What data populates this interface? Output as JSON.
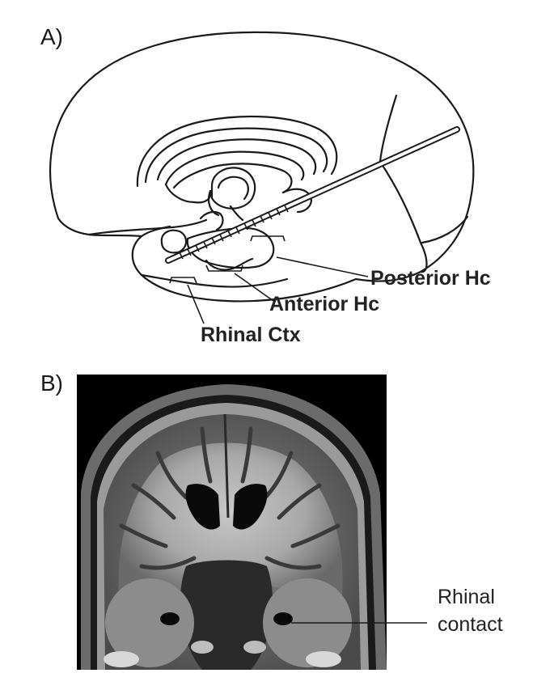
{
  "panel_a": {
    "label": "A)",
    "labels": {
      "posterior_hc": "Posterior Hc",
      "anterior_hc": "Anterior Hc",
      "rhinal_ctx": "Rhinal Ctx"
    }
  },
  "panel_b": {
    "label": "B)",
    "annotation_line1": "Rhinal",
    "annotation_line2": "contact"
  }
}
